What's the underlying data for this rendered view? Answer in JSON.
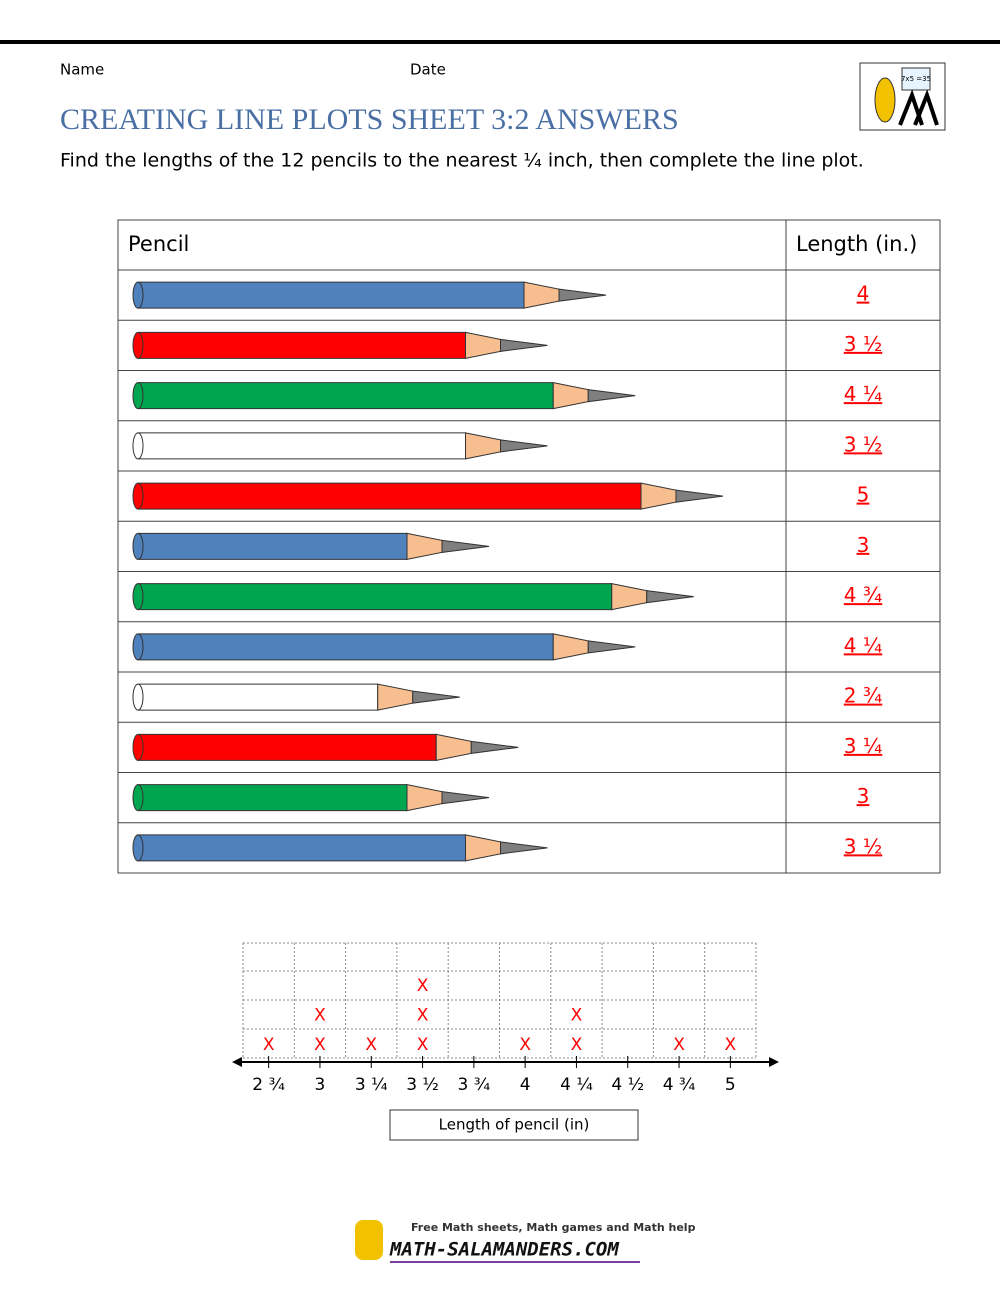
{
  "header": {
    "name_label": "Name",
    "date_label": "Date",
    "title": "CREATING LINE PLOTS SHEET 3:2 ANSWERS",
    "instruction": "Find the lengths of the 12 pencils to the nearest ¼ inch, then complete the line plot.",
    "logo_text": "7x5 =35"
  },
  "table": {
    "columns": [
      "Pencil",
      "Length (in.)"
    ],
    "rows": [
      {
        "color": "#4f81bd",
        "answer": "4"
      },
      {
        "color": "#ff0000",
        "answer": "3 ½"
      },
      {
        "color": "#00a550",
        "answer": "4 ¼"
      },
      {
        "color": "#ffffff",
        "answer": "3 ½"
      },
      {
        "color": "#ff0000",
        "answer": "5"
      },
      {
        "color": "#4f81bd",
        "answer": "3"
      },
      {
        "color": "#00a550",
        "answer": "4 ¾"
      },
      {
        "color": "#4f81bd",
        "answer": "4 ¼"
      },
      {
        "color": "#ffffff",
        "answer": "2 ¾"
      },
      {
        "color": "#ff0000",
        "answer": "3 ¼"
      },
      {
        "color": "#00a550",
        "answer": "3"
      },
      {
        "color": "#4f81bd",
        "answer": "3 ½"
      }
    ]
  },
  "line_plot": {
    "ticks": [
      "2 ¾",
      "3",
      "3 ¼",
      "3 ½",
      "3 ¾",
      "4",
      "4 ¼",
      "4 ½",
      "4 ¾",
      "5"
    ],
    "counts": [
      1,
      2,
      1,
      3,
      0,
      1,
      2,
      0,
      1,
      1
    ],
    "mark_symbol": "X",
    "mark_color": "#ff0000",
    "axis_label": "Length of pencil (in)"
  },
  "footer": {
    "tagline": "Free Math sheets, Math games and Math help",
    "site": "MATH-SALAMANDERS.COM"
  }
}
